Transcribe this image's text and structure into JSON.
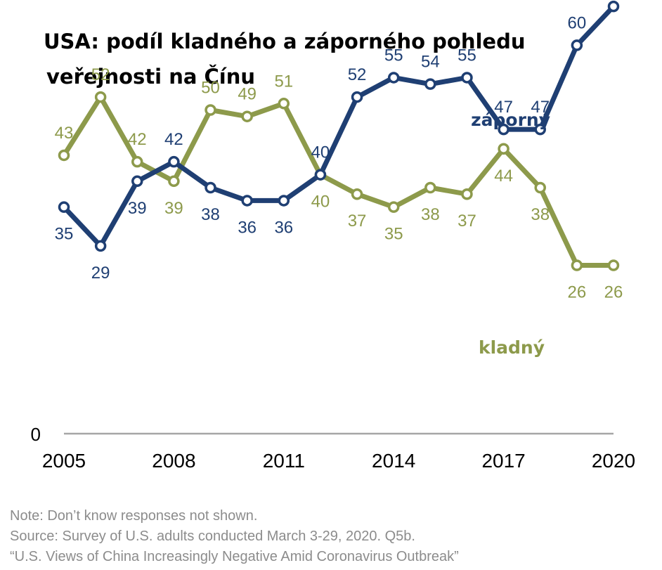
{
  "chart_data": {
    "type": "line",
    "title_lines": [
      "USA: podíl kladného a záporného pohledu",
      "veřejnosti na Čínu"
    ],
    "x": [
      2005,
      2006,
      2007,
      2008,
      2009,
      2010,
      2011,
      2012,
      2013,
      2014,
      2015,
      2016,
      2017,
      2018,
      2019,
      2020
    ],
    "x_tick_labels": [
      "2005",
      "2008",
      "2011",
      "2014",
      "2017",
      "2020"
    ],
    "x_ticks": [
      2005,
      2008,
      2011,
      2014,
      2017,
      2020
    ],
    "y_baseline_label": "0",
    "ylim": [
      0,
      70
    ],
    "xlim": [
      2005,
      2020
    ],
    "grid": false,
    "legend": "inline labels",
    "series": [
      {
        "name": "záporný",
        "color": "#1f3f73",
        "values": [
          35,
          29,
          39,
          42,
          38,
          36,
          36,
          40,
          52,
          55,
          54,
          55,
          47,
          47,
          60,
          66
        ],
        "label_pos": [
          "below",
          "below",
          "below",
          "above",
          "below",
          "below",
          "below",
          "above",
          "above",
          "above",
          "above",
          "above",
          "above",
          "above",
          "above",
          "above"
        ]
      },
      {
        "name": "kladný",
        "color": "#8d9a4b",
        "values": [
          43,
          52,
          42,
          39,
          50,
          49,
          51,
          40,
          37,
          35,
          38,
          37,
          44,
          38,
          26,
          26
        ],
        "label_pos": [
          "above",
          "above",
          "above",
          "below",
          "above",
          "above",
          "above",
          "below",
          "below",
          "below",
          "below",
          "below",
          "below",
          "below",
          "below",
          "below"
        ]
      }
    ]
  },
  "notes": {
    "note": "Note: Don’t know responses not shown.",
    "source": "Source: Survey of U.S. adults conducted March 3-29, 2020. Q5b.",
    "report": "“U.S. Views of China Increasingly Negative Amid Coronavirus Outbreak”"
  },
  "colors": {
    "axis": "#a6a6a6",
    "label": "#000000"
  }
}
